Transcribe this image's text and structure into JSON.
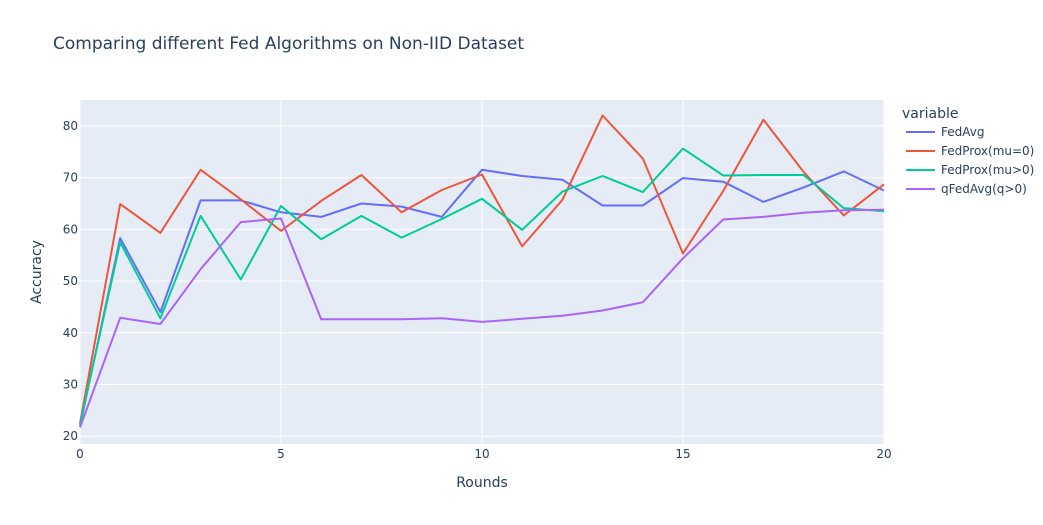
{
  "chart_data": {
    "type": "line",
    "title": "Comparing different Fed Algorithms on Non-IID Dataset",
    "xlabel": "Rounds",
    "ylabel": "Accuracy",
    "xlim": [
      0,
      20
    ],
    "ylim": [
      18.5,
      85
    ],
    "xticks": [
      0,
      5,
      10,
      15,
      20
    ],
    "yticks": [
      20,
      30,
      40,
      50,
      60,
      70,
      80
    ],
    "grid": true,
    "legend_title": "variable",
    "legend_position": "top-right",
    "x": [
      0,
      1,
      2,
      3,
      4,
      5,
      6,
      7,
      8,
      9,
      10,
      11,
      12,
      13,
      14,
      15,
      16,
      17,
      18,
      19,
      20
    ],
    "series": [
      {
        "name": "FedAvg",
        "color": "#636efa",
        "values": [
          22.0,
          58.3,
          44.0,
          65.6,
          65.6,
          63.3,
          62.4,
          65.0,
          64.4,
          62.4,
          71.5,
          70.3,
          69.6,
          64.6,
          64.6,
          69.9,
          69.2,
          65.3,
          68.1,
          71.2,
          67.5
        ]
      },
      {
        "name": "FedProx(mu=0)",
        "color": "#ef553b",
        "values": [
          22.5,
          64.9,
          59.3,
          71.5,
          65.8,
          59.7,
          65.5,
          70.5,
          63.3,
          67.6,
          70.6,
          56.7,
          65.7,
          82.0,
          73.7,
          55.3,
          67.4,
          81.2,
          71.1,
          62.7,
          68.7
        ]
      },
      {
        "name": "FedProx(mu>0)",
        "color": "#00cc96",
        "values": [
          22.3,
          57.5,
          42.8,
          62.6,
          50.3,
          64.5,
          58.1,
          62.6,
          58.4,
          62.0,
          65.9,
          59.9,
          67.3,
          70.3,
          67.2,
          75.6,
          70.4,
          70.5,
          70.5,
          64.1,
          63.5
        ]
      },
      {
        "name": "qFedAvg(q>0)",
        "color": "#ab63fa",
        "values": [
          21.7,
          42.9,
          41.7,
          52.3,
          61.4,
          62.1,
          42.6,
          42.6,
          42.6,
          42.8,
          42.1,
          42.7,
          43.3,
          44.3,
          45.9,
          54.4,
          61.9,
          62.4,
          63.2,
          63.7,
          63.8
        ]
      }
    ]
  }
}
